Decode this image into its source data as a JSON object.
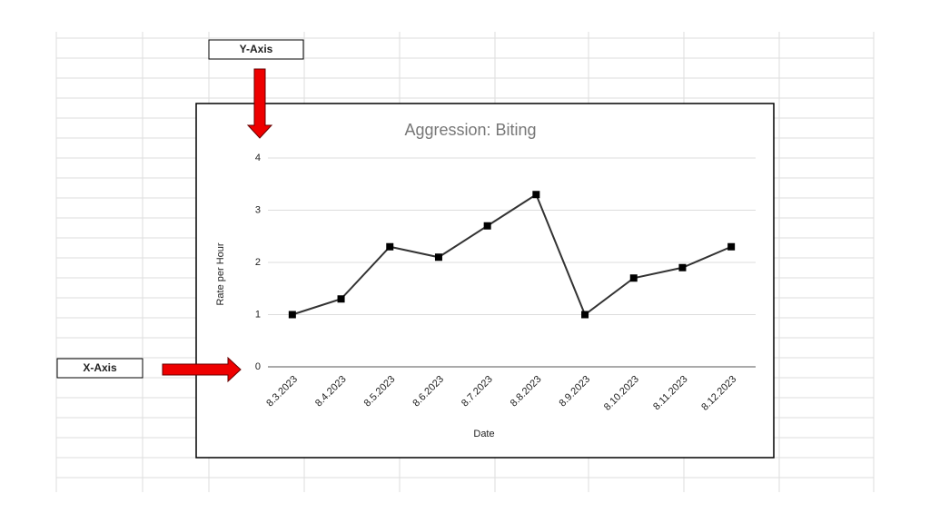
{
  "chart_data": {
    "type": "line",
    "title": "Aggression: Biting",
    "x_label": "Date",
    "y_label": "Rate per Hour",
    "categories": [
      "8.3.2023",
      "8.4.2023",
      "8.5.2023",
      "8.6.2023",
      "8.7.2023",
      "8.8.2023",
      "8.9.2023",
      "8.10.2023",
      "8.11.2023",
      "8.12.2023"
    ],
    "values": [
      1,
      1.3,
      2.3,
      2.1,
      2.7,
      3.3,
      1,
      1.7,
      1.9,
      2.3
    ],
    "color": "#333333",
    "marker_color": "#000000",
    "ylim": [
      0,
      4
    ],
    "yticks": [
      0,
      1,
      2,
      3,
      4
    ],
    "grid": true,
    "annotations": [
      "Y-Axis",
      "X-Axis"
    ]
  }
}
